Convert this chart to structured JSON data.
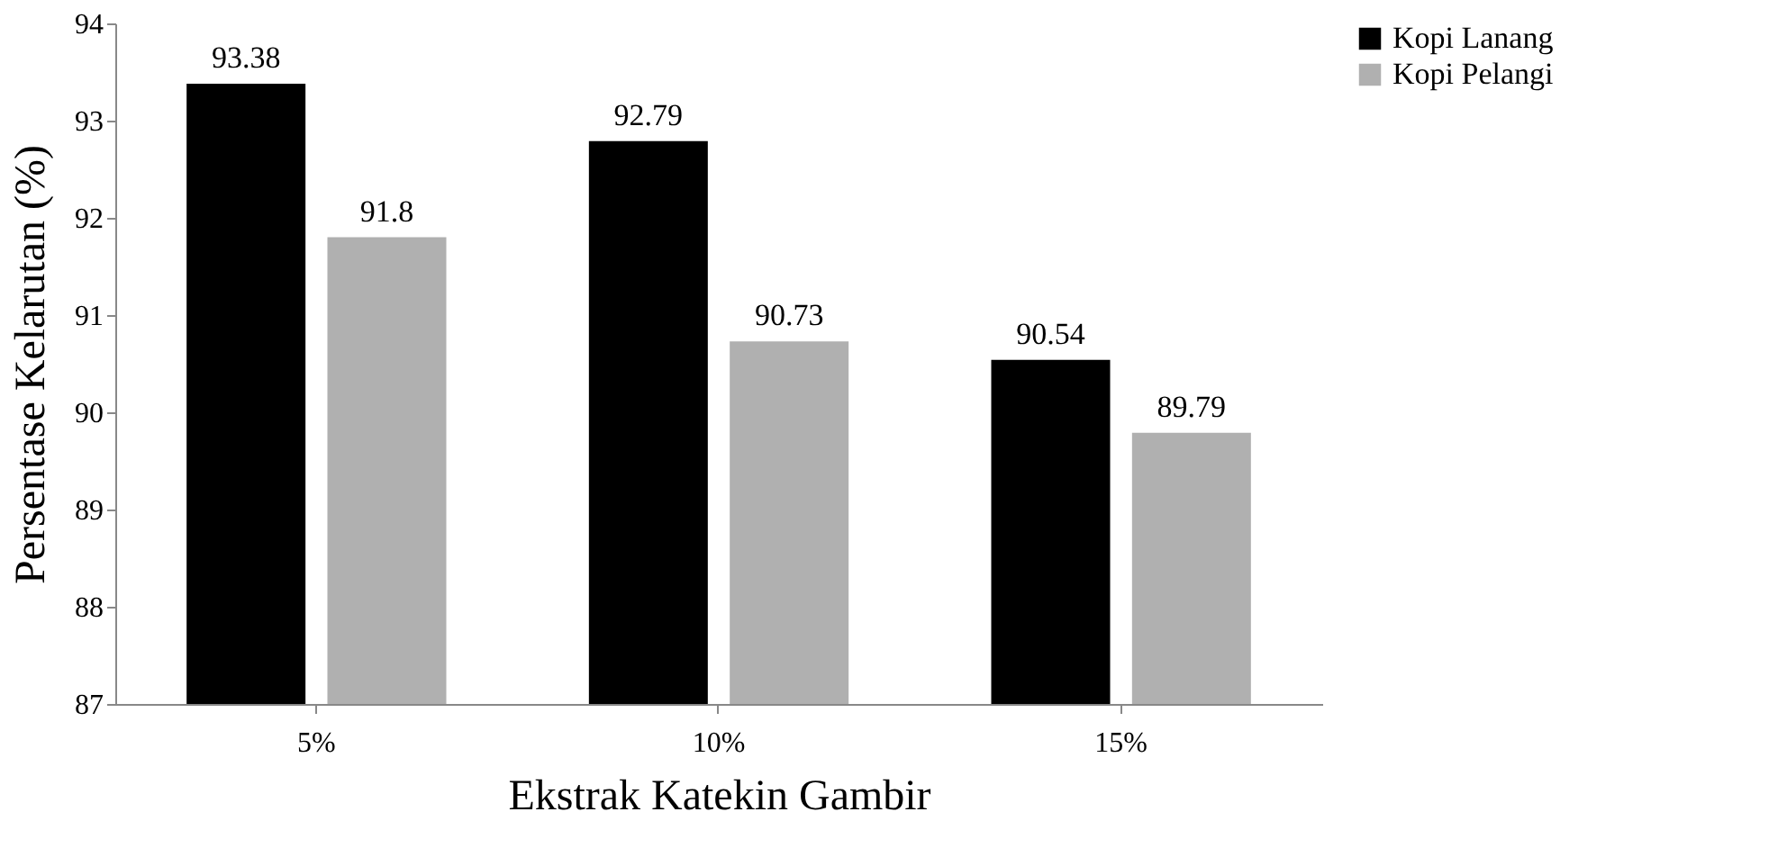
{
  "chart_data": {
    "type": "bar",
    "xlabel": "Ekstrak Katekin Gambir",
    "ylabel": "Persentase Kelarutan (%)",
    "categories": [
      "5%",
      "10%",
      "15%"
    ],
    "series": [
      {
        "name": "Kopi Lanang",
        "color": "#000000",
        "values": [
          93.38,
          92.79,
          90.54
        ]
      },
      {
        "name": "Kopi Pelangi",
        "color": "#b0b0b0",
        "values": [
          91.8,
          90.73,
          89.79
        ]
      }
    ],
    "ylim": [
      87,
      94
    ],
    "yticks": [
      87,
      88,
      89,
      90,
      91,
      92,
      93,
      94
    ],
    "grid": false,
    "legend": "right",
    "data_labels": true
  }
}
